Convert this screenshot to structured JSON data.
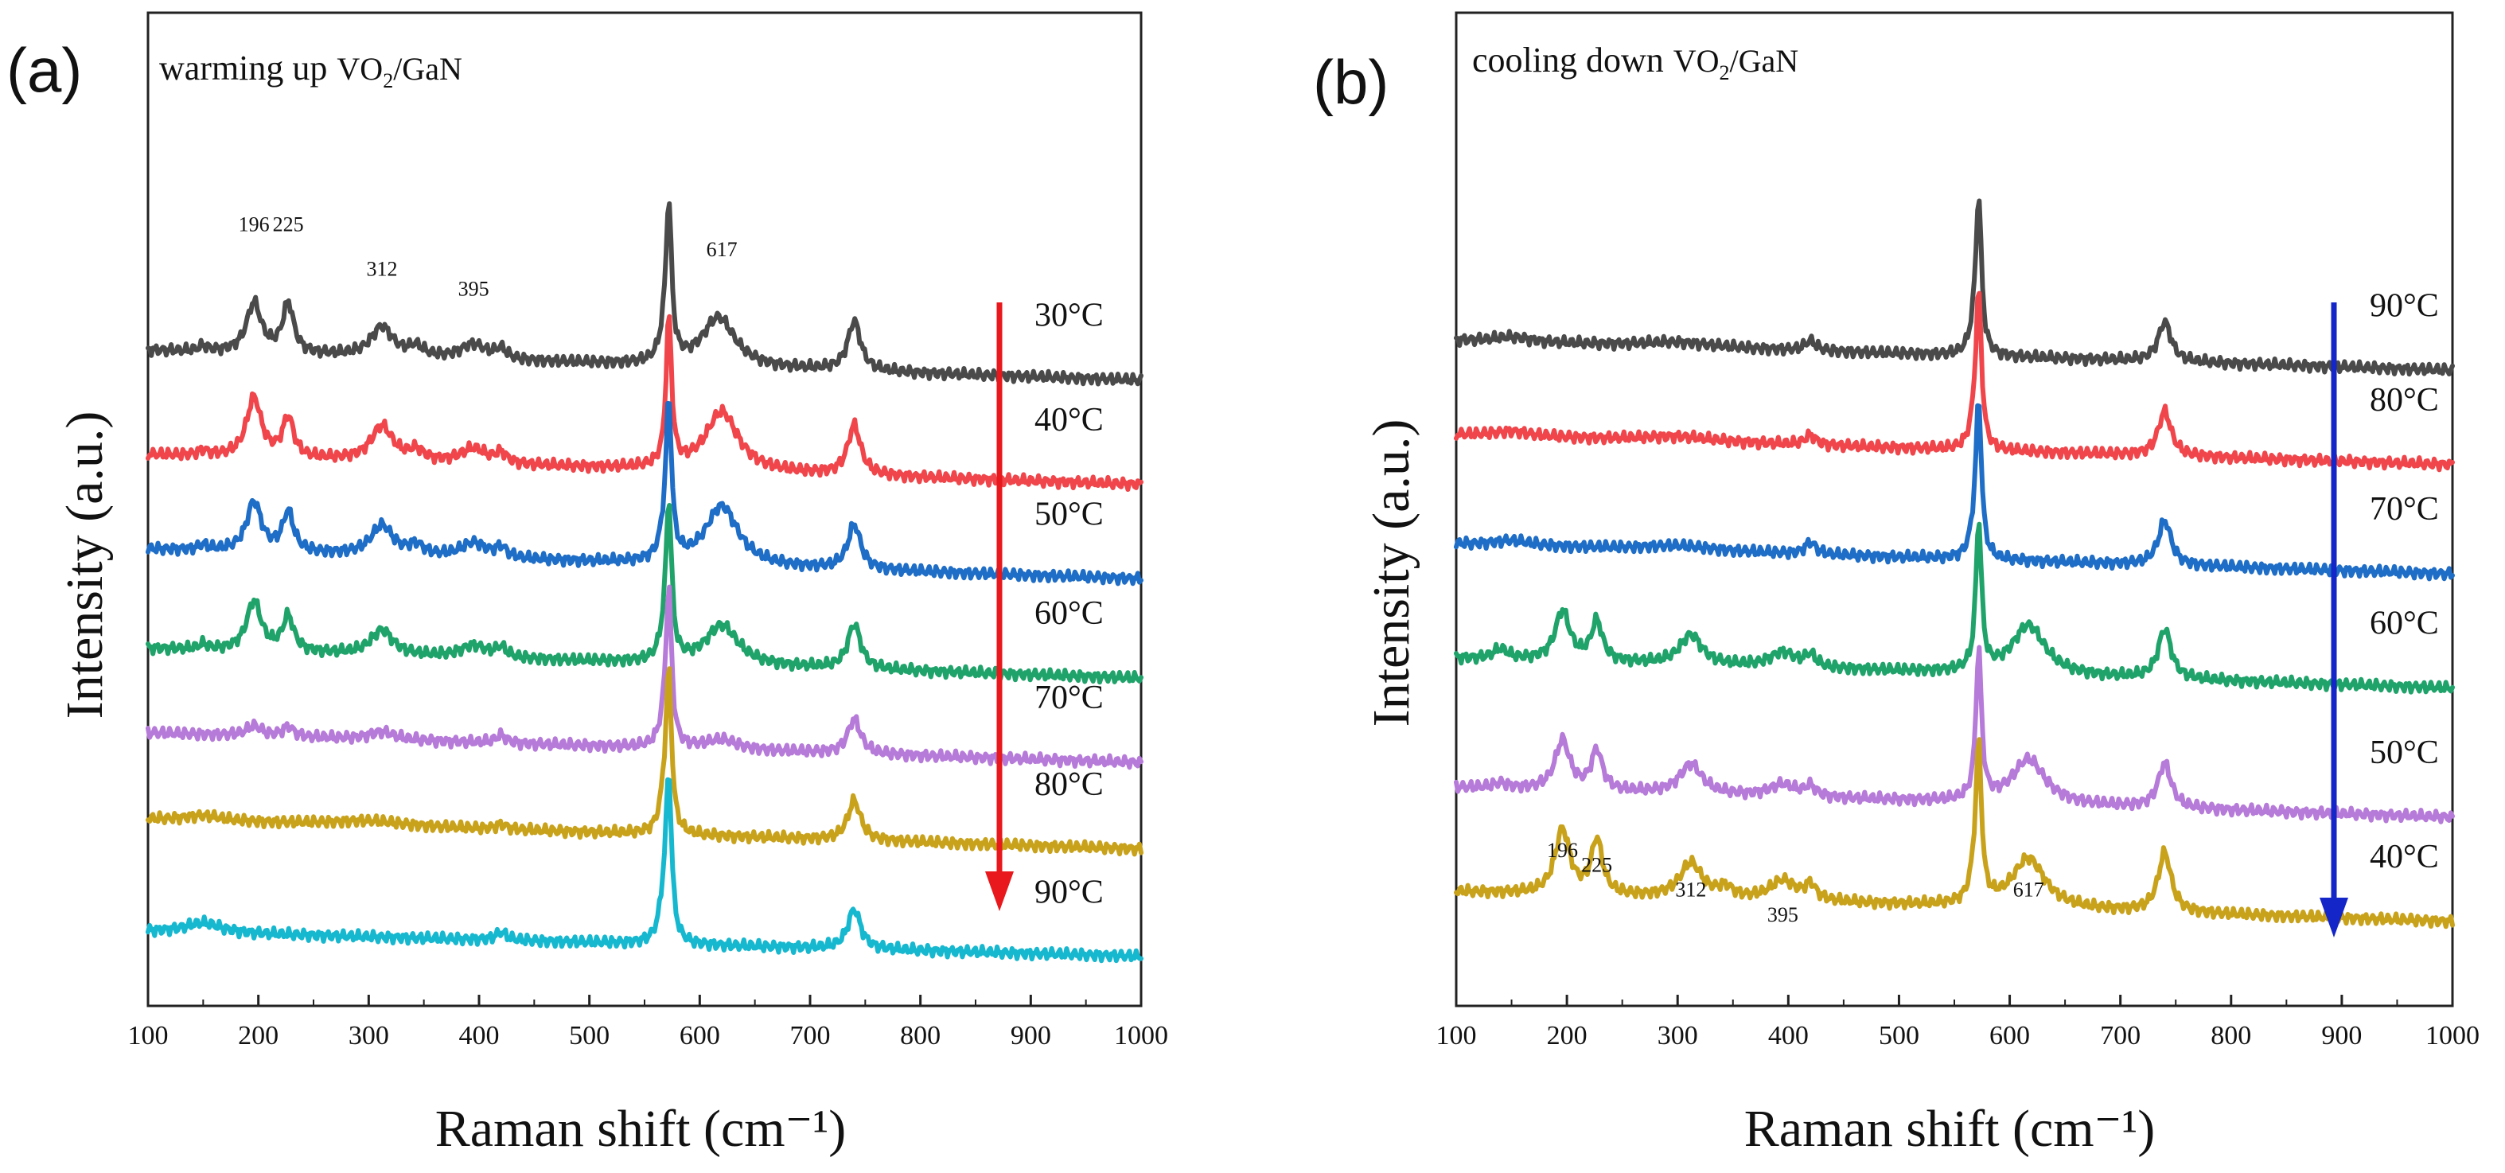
{
  "chart_data": [
    {
      "type": "line",
      "panel_label": "(a)",
      "caption": "warming up",
      "material_formula": {
        "prefix": "VO",
        "subscript": "2",
        "suffix": "/GaN"
      },
      "xlabel": "Raman shift (cm⁻¹)",
      "ylabel": "Intensity (a.u.)",
      "xlim": [
        100,
        1000
      ],
      "xticks": [
        "100",
        "200",
        "300",
        "400",
        "500",
        "600",
        "700",
        "800",
        "900",
        "1000"
      ],
      "arrow_color": "#e8181c",
      "arrow_direction": "down",
      "peak_labels": [
        {
          "text": "196",
          "x": 196,
          "y": 0.66
        },
        {
          "text": "225",
          "x": 227,
          "y": 0.66
        },
        {
          "text": "312",
          "x": 312,
          "y": 0.615
        },
        {
          "text": "395",
          "x": 395,
          "y": 0.595
        },
        {
          "text": "617",
          "x": 620,
          "y": 0.635
        }
      ],
      "series": [
        {
          "name": "30°C",
          "color": "#4a4a4a",
          "baseline": 0.54,
          "tilt": 0.03,
          "peaks": [
            [
              150,
              0.005,
              5
            ],
            [
              196,
              0.05,
              8
            ],
            [
              227,
              0.05,
              6
            ],
            [
              312,
              0.03,
              12
            ],
            [
              343,
              0.01,
              8
            ],
            [
              395,
              0.015,
              14
            ],
            [
              420,
              0.01,
              6
            ],
            [
              568,
              0.02,
              5
            ],
            [
              572,
              0.15,
              3
            ],
            [
              617,
              0.05,
              18
            ],
            [
              740,
              0.05,
              7
            ]
          ]
        },
        {
          "name": "40°C",
          "color": "#f0454a",
          "baseline": 0.435,
          "tilt": 0.03,
          "peaks": [
            [
              150,
              0.005,
              5
            ],
            [
              196,
              0.06,
              8
            ],
            [
              227,
              0.04,
              6
            ],
            [
              312,
              0.035,
              12
            ],
            [
              343,
              0.01,
              8
            ],
            [
              395,
              0.015,
              14
            ],
            [
              420,
              0.01,
              6
            ],
            [
              572,
              0.15,
              3
            ],
            [
              620,
              0.06,
              18
            ],
            [
              740,
              0.05,
              7
            ]
          ]
        },
        {
          "name": "50°C",
          "color": "#1e6dc6",
          "baseline": 0.34,
          "tilt": 0.03,
          "peaks": [
            [
              150,
              0.005,
              5
            ],
            [
              196,
              0.05,
              8
            ],
            [
              227,
              0.04,
              6
            ],
            [
              312,
              0.03,
              12
            ],
            [
              343,
              0.01,
              8
            ],
            [
              395,
              0.015,
              14
            ],
            [
              420,
              0.01,
              6
            ],
            [
              568,
              0.02,
              5
            ],
            [
              572,
              0.15,
              3
            ],
            [
              620,
              0.06,
              18
            ],
            [
              740,
              0.045,
              7
            ]
          ]
        },
        {
          "name": "60°C",
          "color": "#1fa36a",
          "baseline": 0.24,
          "tilt": 0.03,
          "peaks": [
            [
              150,
              0.005,
              5
            ],
            [
              196,
              0.05,
              8
            ],
            [
              227,
              0.035,
              6
            ],
            [
              312,
              0.025,
              12
            ],
            [
              395,
              0.012,
              14
            ],
            [
              420,
              0.01,
              6
            ],
            [
              568,
              0.02,
              5
            ],
            [
              572,
              0.15,
              3
            ],
            [
              620,
              0.04,
              18
            ],
            [
              740,
              0.045,
              7
            ]
          ]
        },
        {
          "name": "70°C",
          "color": "#b67ad9",
          "baseline": 0.155,
          "tilt": 0.03,
          "peaks": [
            [
              196,
              0.01,
              8
            ],
            [
              227,
              0.01,
              6
            ],
            [
              312,
              0.008,
              14
            ],
            [
              420,
              0.008,
              6
            ],
            [
              568,
              0.02,
              5
            ],
            [
              572,
              0.15,
              3
            ],
            [
              620,
              0.01,
              18
            ],
            [
              740,
              0.035,
              7
            ]
          ]
        },
        {
          "name": "80°C",
          "color": "#c9a21b",
          "baseline": 0.068,
          "tilt": 0.03,
          "peaks": [
            [
              150,
              0.005,
              20
            ],
            [
              300,
              0.005,
              40
            ],
            [
              420,
              0.005,
              6
            ],
            [
              568,
              0.03,
              5
            ],
            [
              572,
              0.15,
              3
            ],
            [
              740,
              0.04,
              7
            ]
          ]
        },
        {
          "name": "90°C",
          "color": "#16b8cf",
          "baseline": -0.045,
          "tilt": 0.025,
          "peaks": [
            [
              150,
              0.01,
              20
            ],
            [
              420,
              0.008,
              6
            ],
            [
              568,
              0.04,
              5
            ],
            [
              572,
              0.15,
              3
            ],
            [
              740,
              0.04,
              7
            ]
          ]
        }
      ]
    },
    {
      "type": "line",
      "panel_label": "(b)",
      "caption": "cooling down",
      "material_formula": {
        "prefix": "VO",
        "subscript": "2",
        "suffix": "/GaN"
      },
      "xlabel": "Raman shift (cm⁻¹)",
      "ylabel": "Intensity (a.u.)",
      "xlim": [
        100,
        1000
      ],
      "xticks": [
        "100",
        "200",
        "300",
        "400",
        "500",
        "600",
        "700",
        "800",
        "900",
        "1000"
      ],
      "arrow_color": "#1426c8",
      "arrow_direction": "down",
      "peak_labels": [
        {
          "text": "196",
          "x": 196,
          "y": 0.03
        },
        {
          "text": "225",
          "x": 227,
          "y": 0.015
        },
        {
          "text": "312",
          "x": 312,
          "y": -0.01
        },
        {
          "text": "395",
          "x": 395,
          "y": -0.035
        },
        {
          "text": "617",
          "x": 617,
          "y": -0.01
        }
      ],
      "series": [
        {
          "name": "90°C",
          "color": "#4a4a4a",
          "baseline": 0.55,
          "tilt": 0.03,
          "peaks": [
            [
              150,
              0.005,
              20
            ],
            [
              300,
              0.005,
              40
            ],
            [
              420,
              0.01,
              6
            ],
            [
              568,
              0.02,
              5
            ],
            [
              572,
              0.15,
              3
            ],
            [
              740,
              0.04,
              7
            ]
          ]
        },
        {
          "name": "80°C",
          "color": "#f0454a",
          "baseline": 0.455,
          "tilt": 0.03,
          "peaks": [
            [
              150,
              0.005,
              20
            ],
            [
              300,
              0.005,
              40
            ],
            [
              420,
              0.01,
              6
            ],
            [
              568,
              0.02,
              5
            ],
            [
              572,
              0.15,
              3
            ],
            [
              740,
              0.045,
              7
            ]
          ]
        },
        {
          "name": "70°C",
          "color": "#1e6dc6",
          "baseline": 0.345,
          "tilt": 0.03,
          "peaks": [
            [
              150,
              0.005,
              20
            ],
            [
              300,
              0.005,
              40
            ],
            [
              420,
              0.012,
              6
            ],
            [
              568,
              0.02,
              5
            ],
            [
              572,
              0.15,
              3
            ],
            [
              740,
              0.045,
              7
            ]
          ]
        },
        {
          "name": "60°C",
          "color": "#1fa36a",
          "baseline": 0.23,
          "tilt": 0.03,
          "peaks": [
            [
              140,
              0.01,
              8
            ],
            [
              196,
              0.05,
              8
            ],
            [
              227,
              0.04,
              6
            ],
            [
              312,
              0.03,
              12
            ],
            [
              395,
              0.015,
              14
            ],
            [
              420,
              0.012,
              6
            ],
            [
              572,
              0.15,
              3
            ],
            [
              617,
              0.05,
              18
            ],
            [
              740,
              0.05,
              7
            ]
          ]
        },
        {
          "name": "50°C",
          "color": "#b67ad9",
          "baseline": 0.1,
          "tilt": 0.03,
          "peaks": [
            [
              140,
              0.005,
              8
            ],
            [
              196,
              0.05,
              8
            ],
            [
              227,
              0.04,
              6
            ],
            [
              312,
              0.03,
              12
            ],
            [
              395,
              0.012,
              14
            ],
            [
              420,
              0.01,
              6
            ],
            [
              572,
              0.15,
              3
            ],
            [
              617,
              0.045,
              18
            ],
            [
              740,
              0.045,
              7
            ]
          ]
        },
        {
          "name": "40°C",
          "color": "#c9a21b",
          "baseline": -0.005,
          "tilt": 0.03,
          "peaks": [
            [
              196,
              0.065,
              8
            ],
            [
              227,
              0.055,
              6
            ],
            [
              312,
              0.035,
              12
            ],
            [
              343,
              0.01,
              8
            ],
            [
              395,
              0.02,
              14
            ],
            [
              420,
              0.015,
              6
            ],
            [
              568,
              0.02,
              5
            ],
            [
              572,
              0.15,
              3
            ],
            [
              617,
              0.05,
              18
            ],
            [
              740,
              0.06,
              7
            ]
          ]
        }
      ]
    }
  ]
}
